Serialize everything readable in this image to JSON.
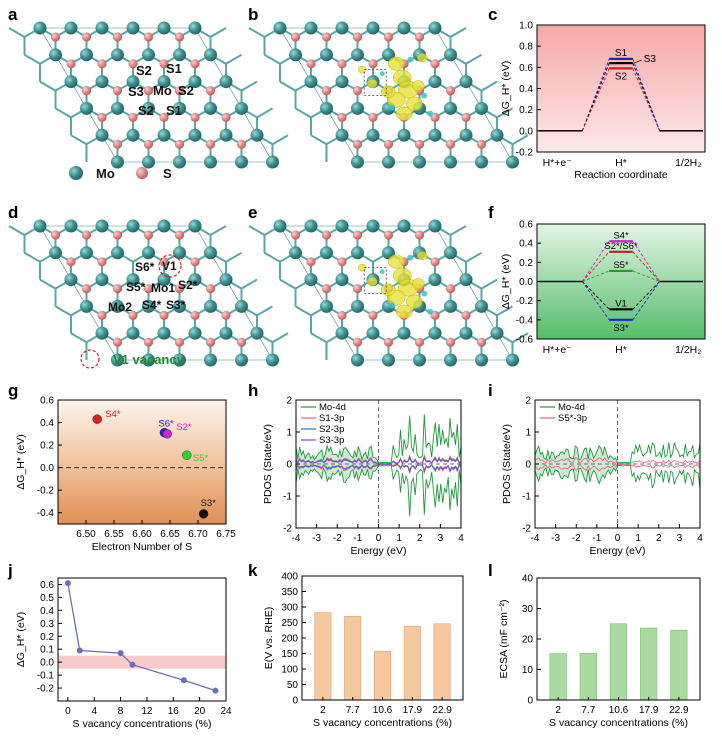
{
  "panel_labels": {
    "a": "a",
    "b": "b",
    "c": "c",
    "d": "d",
    "e": "e",
    "f": "f",
    "g": "g",
    "h": "h",
    "i": "i",
    "j": "j",
    "k": "k",
    "l": "l"
  },
  "structures": {
    "a": {
      "sites": [
        "S2",
        "S1",
        "S3",
        "Mo",
        "S2",
        "S2",
        "S1"
      ]
    },
    "d": {
      "sites": [
        "S6*",
        "V1",
        "S5*",
        "Mo1",
        "S2*",
        "Mo2",
        "S4*",
        "S3*"
      ]
    },
    "legend": {
      "mo": "Mo",
      "s": "S",
      "vacancy": "V1 vacancy"
    },
    "colors": {
      "mo": "#3e9393",
      "s": "#d97a7a",
      "charge_yellow": "#e8e020",
      "charge_cyan": "#36c7c7"
    }
  },
  "chart_data": [
    {
      "panel": "c",
      "type": "line",
      "title": "",
      "xlabel": "Reaction coordinate",
      "ylabel": "ΔG_H* (eV)",
      "categories": [
        "H*+e⁻",
        "H*",
        "1/2H₂"
      ],
      "ylim": [
        -0.2,
        1.0
      ],
      "yticks": [
        "-0.2",
        "0.0",
        "0.2",
        "0.4",
        "0.6",
        "0.8",
        "1.0"
      ],
      "series": [
        {
          "name": "S1",
          "values": [
            0,
            0.68,
            0
          ],
          "color": "#2020d0"
        },
        {
          "name": "S3",
          "values": [
            0,
            0.64,
            0
          ],
          "color": "#000000"
        },
        {
          "name": "S2",
          "values": [
            0,
            0.59,
            0
          ],
          "color": "#c02020"
        }
      ],
      "background": [
        "#f6a8a8",
        "#fde6e6"
      ]
    },
    {
      "panel": "f",
      "type": "line",
      "xlabel": "",
      "ylabel": "ΔG_H* (eV)",
      "categories": [
        "H*+e⁻",
        "H*",
        "1/2H₂"
      ],
      "ylim": [
        -0.6,
        0.6
      ],
      "yticks": [
        "-0.6",
        "-0.4",
        "-0.2",
        "0.0",
        "0.2",
        "0.4",
        "0.6"
      ],
      "series": [
        {
          "name": "S4*",
          "values": [
            0,
            0.42,
            0
          ],
          "color": "#d020d0"
        },
        {
          "name": "S2*/S6*",
          "values": [
            0,
            0.31,
            0
          ],
          "color": "#c02020"
        },
        {
          "name": "S5*",
          "values": [
            0,
            0.11,
            0
          ],
          "color": "#20a020"
        },
        {
          "name": "V1",
          "values": [
            0,
            -0.29,
            0
          ],
          "color": "#000000"
        },
        {
          "name": "S3*",
          "values": [
            0,
            -0.4,
            0
          ],
          "color": "#2020d0"
        }
      ],
      "background": [
        "#e2f2e2",
        "#58c070"
      ]
    },
    {
      "panel": "g",
      "type": "scatter",
      "xlabel": "Electron Number of S",
      "ylabel": "ΔG_H* (eV)",
      "xlim": [
        6.45,
        6.75
      ],
      "ylim": [
        -0.5,
        0.6
      ],
      "xticks": [
        "6.50",
        "6.55",
        "6.60",
        "6.65",
        "6.70",
        "6.75"
      ],
      "yticks": [
        "-0.4",
        "-0.2",
        "0.0",
        "0.2",
        "0.4",
        "0.6"
      ],
      "points": [
        {
          "label": "S4*",
          "x": 6.52,
          "y": 0.43,
          "color": "#e02020"
        },
        {
          "label": "S6*",
          "x": 6.64,
          "y": 0.31,
          "color": "#2020e0"
        },
        {
          "label": "S2*",
          "x": 6.645,
          "y": 0.3,
          "color": "#d020d0"
        },
        {
          "label": "S5*",
          "x": 6.68,
          "y": 0.11,
          "color": "#30d030"
        },
        {
          "label": "S3*",
          "x": 6.71,
          "y": -0.41,
          "color": "#101010"
        }
      ],
      "background": [
        "#fdf3ec",
        "#e0925a"
      ]
    },
    {
      "panel": "h",
      "type": "line",
      "xlabel": "Energy (eV)",
      "ylabel": "PDOS (State/eV)",
      "xlim": [
        -4,
        4
      ],
      "ylim": [
        -2,
        2
      ],
      "xticks": [
        "-4",
        "-3",
        "-2",
        "-1",
        "0",
        "1",
        "2",
        "3",
        "4"
      ],
      "yticks": [
        "-2",
        "-1",
        "0",
        "1",
        "2"
      ],
      "legend_entries": [
        {
          "label": "Mo-4d",
          "color": "#1e9a3c"
        },
        {
          "label": "S1-3p",
          "color": "#e06080"
        },
        {
          "label": "S2-3p",
          "color": "#3070c0"
        },
        {
          "label": "S3-3p",
          "color": "#8050c0"
        }
      ]
    },
    {
      "panel": "i",
      "type": "line",
      "xlabel": "Energy (eV)",
      "ylabel": "PDOS (State/eV)",
      "xlim": [
        -4,
        4
      ],
      "ylim": [
        -2,
        2
      ],
      "xticks": [
        "-4",
        "-3",
        "-2",
        "-1",
        "0",
        "1",
        "2",
        "3",
        "4"
      ],
      "yticks": [
        "-2",
        "-1",
        "0",
        "1",
        "2"
      ],
      "legend_entries": [
        {
          "label": "Mo-4d",
          "color": "#1e9a3c"
        },
        {
          "label": "S5*-3p",
          "color": "#e06080"
        }
      ]
    },
    {
      "panel": "j",
      "type": "line",
      "xlabel": "S vacancy concentrations (%)",
      "ylabel": "ΔG_H* (eV)",
      "x": [
        0,
        1.8,
        8,
        9.8,
        17.6,
        22.4
      ],
      "values": [
        0.61,
        0.09,
        0.07,
        -0.02,
        -0.14,
        -0.22
      ],
      "xlim": [
        -1.5,
        24
      ],
      "ylim": [
        -0.3,
        0.65
      ],
      "xticks": [
        "0",
        "4",
        "8",
        "12",
        "16",
        "20",
        "24"
      ],
      "yticks": [
        "-0.2",
        "-0.1",
        "0.0",
        "0.1",
        "0.2",
        "0.3",
        "0.4",
        "0.5",
        "0.6"
      ],
      "band": [
        -0.05,
        0.05
      ]
    },
    {
      "panel": "k",
      "type": "bar",
      "xlabel": "S vacancy concentrations (%)",
      "ylabel": "E(V vs. RHE)",
      "categories": [
        "2",
        "7.7",
        "10.6",
        "17.9",
        "22.9"
      ],
      "values": [
        282,
        270,
        157,
        238,
        246
      ],
      "ylim": [
        0,
        400
      ],
      "yticks": [
        "0",
        "50",
        "100",
        "150",
        "200",
        "250",
        "300",
        "350",
        "400"
      ]
    },
    {
      "panel": "l",
      "type": "bar",
      "xlabel": "S vacancy concentrations (%)",
      "ylabel": "ECSA (mF cm⁻²)",
      "categories": [
        "2",
        "7.7",
        "10.6",
        "17.9",
        "22.9"
      ],
      "values": [
        15.2,
        15.3,
        25,
        23.6,
        22.9
      ],
      "ylim": [
        0,
        40
      ],
      "yticks": [
        "0",
        "10",
        "20",
        "30",
        "40"
      ]
    }
  ]
}
